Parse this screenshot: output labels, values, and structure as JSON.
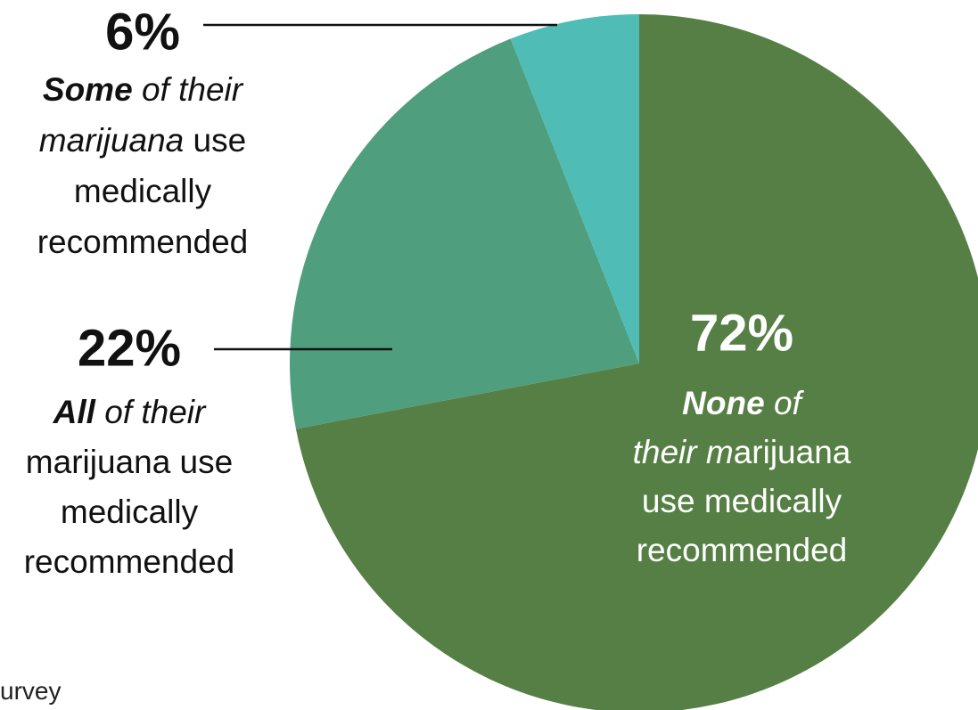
{
  "chart_data": {
    "type": "pie",
    "values": [
      72,
      22,
      6
    ],
    "value_labels": [
      "72%",
      "22%",
      "6%"
    ],
    "colors": [
      "#567f45",
      "#4f9e7d",
      "#4fbdb5"
    ],
    "start_angle": 0,
    "direction": "clockwise",
    "annotations": [
      [
        [
          {
            "text": "None",
            "style": "bold-italic"
          },
          {
            "text": " of",
            "style": "italic"
          }
        ],
        [
          {
            "text": "their m",
            "style": "italic"
          },
          {
            "text": "arijuana",
            "style": "normal"
          }
        ],
        [
          {
            "text": "use medically",
            "style": "normal"
          }
        ],
        [
          {
            "text": "recommended",
            "style": "normal"
          }
        ]
      ],
      [
        [
          {
            "text": "All",
            "style": "bold-italic"
          },
          {
            "text": " of their",
            "style": "italic"
          }
        ],
        [
          {
            "text": "marijuana use",
            "style": "normal"
          }
        ],
        [
          {
            "text": "medically",
            "style": "normal"
          }
        ],
        [
          {
            "text": "recommended",
            "style": "normal"
          }
        ]
      ],
      [
        [
          {
            "text": "Some",
            "style": "bold-italic"
          },
          {
            "text": " of their",
            "style": "italic"
          }
        ],
        [
          {
            "text": "marijuana",
            "style": "italic"
          },
          {
            "text": " use",
            "style": "normal"
          }
        ],
        [
          {
            "text": "medically",
            "style": "normal"
          }
        ],
        [
          {
            "text": "recommended",
            "style": "normal"
          }
        ]
      ]
    ],
    "source": "urvey"
  }
}
